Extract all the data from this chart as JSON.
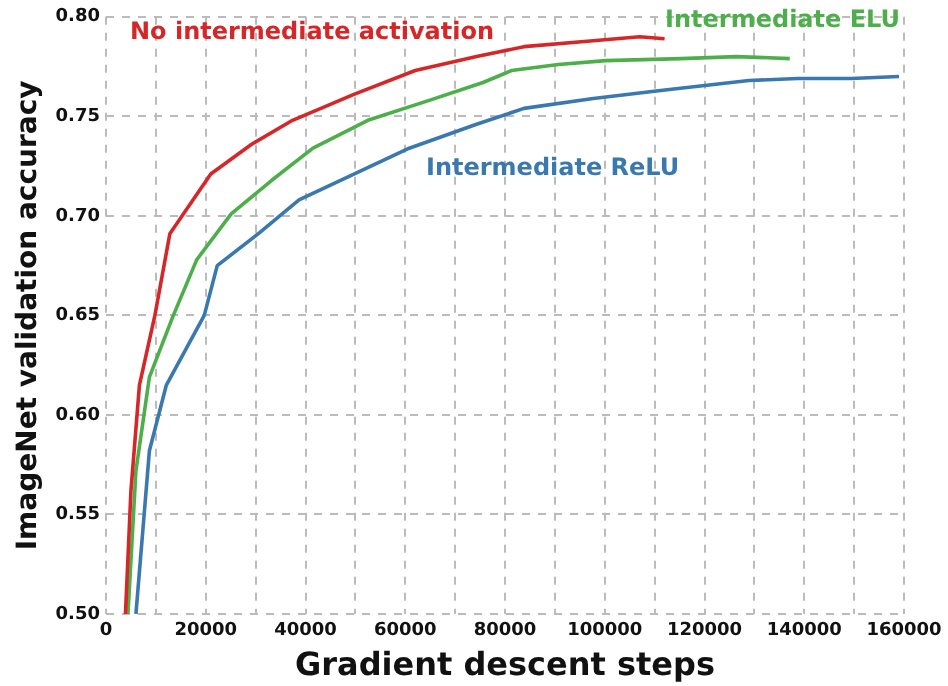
{
  "chart_data": {
    "type": "line",
    "xlabel": "Gradient descent steps",
    "ylabel": "ImageNet validation accuracy",
    "xlim": [
      0,
      160000
    ],
    "xticks": [
      0,
      {
        "value": 10000,
        "label": null
      },
      20000,
      {
        "value": 30000,
        "label": null
      },
      40000,
      {
        "value": 50000,
        "label": null
      },
      60000,
      {
        "value": 70000,
        "label": null
      },
      80000,
      {
        "value": 90000,
        "label": null
      },
      100000,
      {
        "value": 110000,
        "label": null
      },
      120000,
      {
        "value": 130000,
        "label": null
      },
      140000,
      {
        "value": 150000,
        "label": null
      },
      160000
    ],
    "ylim": [
      0.5,
      0.8
    ],
    "yticks": [
      {
        "value": 0.5,
        "label": "0.50"
      },
      {
        "value": 0.55,
        "label": "0.55"
      },
      {
        "value": 0.6,
        "label": "0.60"
      },
      {
        "value": 0.65,
        "label": "0.65"
      },
      {
        "value": 0.7,
        "label": "0.70"
      },
      {
        "value": 0.75,
        "label": "0.75"
      },
      {
        "value": 0.8,
        "label": "0.80"
      }
    ],
    "grid": true,
    "legend": false,
    "marker": "none",
    "line_style": "solid",
    "series": [
      {
        "name": "No intermediate activation",
        "color": "#d62728",
        "x": [
          3900,
          5000,
          6700,
          9800,
          12800,
          21000,
          29200,
          37400,
          49700,
          62000,
          74300,
          83800,
          97700,
          107000,
          112000
        ],
        "values": [
          0.5,
          0.562,
          0.615,
          0.65,
          0.691,
          0.721,
          0.736,
          0.748,
          0.761,
          0.773,
          0.78,
          0.785,
          0.788,
          0.79,
          0.789
        ]
      },
      {
        "name": "Intermediate ELU",
        "color": "#4daf4a",
        "x": [
          4400,
          6000,
          8700,
          13500,
          18200,
          25100,
          33300,
          41500,
          52500,
          64800,
          75600,
          81300,
          90700,
          100200,
          115300,
          126400,
          137100
        ],
        "values": [
          0.5,
          0.572,
          0.619,
          0.65,
          0.678,
          0.701,
          0.718,
          0.734,
          0.748,
          0.758,
          0.767,
          0.773,
          0.776,
          0.778,
          0.779,
          0.78,
          0.779
        ]
      },
      {
        "name": "Intermediate ReLU",
        "color": "#3a78b0",
        "x": [
          6000,
          8700,
          12100,
          19700,
          22300,
          30500,
          38700,
          49700,
          60800,
          74300,
          83800,
          97700,
          111200,
          128900,
          138700,
          149400,
          159000
        ],
        "values": [
          0.5,
          0.582,
          0.615,
          0.65,
          0.675,
          0.691,
          0.708,
          0.721,
          0.734,
          0.746,
          0.754,
          0.759,
          0.763,
          0.768,
          0.769,
          0.769,
          0.77
        ]
      }
    ]
  }
}
